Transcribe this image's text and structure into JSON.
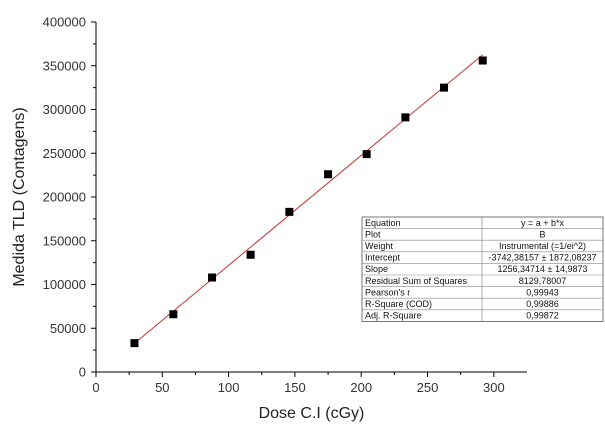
{
  "chart_data": {
    "type": "scatter",
    "xlabel": "Dose C.I (cGy)",
    "ylabel": "Medida TLD (Contagens)",
    "xlim": [
      0,
      325
    ],
    "ylim": [
      0,
      400000
    ],
    "x_ticks": [
      0,
      50,
      100,
      150,
      200,
      250,
      300
    ],
    "y_ticks": [
      0,
      50000,
      100000,
      150000,
      200000,
      250000,
      300000,
      350000,
      400000
    ],
    "series": [
      {
        "x": [
          29,
          58.3,
          87.5,
          116.6,
          145.8,
          175,
          204.1,
          233.3,
          262.4,
          291.6
        ],
        "y": [
          33000,
          66000,
          108000,
          134000,
          183000,
          226000,
          249000,
          291000,
          325000,
          356000
        ],
        "marker": "square",
        "color": "#000000"
      }
    ],
    "fit_line": {
      "intercept": -3742.38157,
      "slope": 1256.34714,
      "x_range": [
        29,
        291.6
      ],
      "color": "#cc3333"
    },
    "stats_table": {
      "headers": [
        "Equation",
        "y = a + b*x"
      ],
      "rows": [
        [
          "Plot",
          "B"
        ],
        [
          "Weight",
          "Instrumental (=1/ei^2)"
        ],
        [
          "Intercept",
          "-3742,38157 ± 1872,08237"
        ],
        [
          "Slope",
          "1256,34714 ± 14,9873"
        ],
        [
          "Residual Sum of Squares",
          "8129,78007"
        ],
        [
          "Pearson's r",
          "0,99943"
        ],
        [
          "R-Square (COD)",
          "0,99886"
        ],
        [
          "Adj. R-Square",
          "0,99872"
        ]
      ]
    },
    "grid": false,
    "legend": "none"
  }
}
